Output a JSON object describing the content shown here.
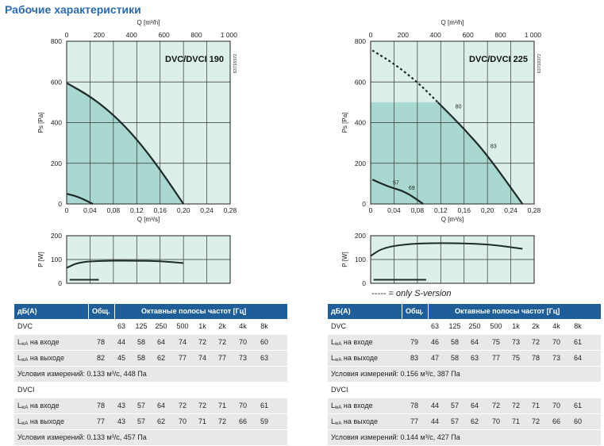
{
  "page_title": "Рабочие характеристики",
  "s_version_note": "----- = only S-version",
  "chart_data": [
    {
      "type": "line",
      "title": "DVC/DVCI 190",
      "code": "63718372",
      "xlabel": "Q [m³/s]",
      "x2label": "Q [m³/h]",
      "ylabel": "Ps [Pa]",
      "xlim": [
        0,
        0.28
      ],
      "ylim": [
        0,
        800
      ],
      "x_ticks": [
        "0",
        "0,04",
        "0,08",
        "0,12",
        "0,16",
        "0,20",
        "0,24",
        "0,28"
      ],
      "x2_ticks": [
        "0",
        "200",
        "400",
        "600",
        "800",
        "1 000"
      ],
      "y_ticks": [
        "0",
        "200",
        "400",
        "600",
        "800"
      ],
      "series": [
        {
          "style": "solid",
          "x": [
            0,
            0.04,
            0.08,
            0.12,
            0.16,
            0.2
          ],
          "y": [
            595,
            530,
            440,
            320,
            170,
            0
          ]
        },
        {
          "style": "solid",
          "x": [
            0,
            0.02,
            0.045
          ],
          "y": [
            50,
            35,
            0
          ]
        }
      ],
      "power": {
        "ylabel": "P [W]",
        "ylim": [
          0,
          200
        ],
        "y_ticks": [
          "0",
          "100",
          "200"
        ],
        "series": [
          {
            "x": [
              0,
              0.02,
              0.06,
              0.12,
              0.16,
              0.2
            ],
            "y": [
              65,
              88,
              95,
              95,
              93,
              85
            ]
          },
          {
            "x": [
              0.005,
              0.055
            ],
            "y": [
              15,
              15
            ]
          }
        ]
      }
    },
    {
      "type": "line",
      "title": "DVC/DVCI 225",
      "code": "63718372",
      "xlabel": "Q [m³/s]",
      "x2label": "Q [m³/h]",
      "ylabel": "Ps [Pa]",
      "xlim": [
        0,
        0.28
      ],
      "ylim": [
        0,
        800
      ],
      "x_ticks": [
        "0",
        "0,04",
        "0,08",
        "0,12",
        "0,16",
        "0,20",
        "0,24",
        "0,28"
      ],
      "x2_ticks": [
        "0",
        "200",
        "400",
        "600",
        "800",
        "1 000"
      ],
      "y_ticks": [
        "0",
        "200",
        "400",
        "600",
        "800"
      ],
      "series": [
        {
          "style": "dashed",
          "x": [
            0.003,
            0.04,
            0.08,
            0.115
          ],
          "y": [
            755,
            690,
            600,
            500
          ]
        },
        {
          "style": "solid",
          "x": [
            0.115,
            0.16,
            0.2,
            0.26
          ],
          "y": [
            500,
            370,
            240,
            0
          ]
        },
        {
          "style": "solid",
          "x": [
            0.003,
            0.03,
            0.06,
            0.09
          ],
          "y": [
            120,
            85,
            60,
            0
          ]
        }
      ],
      "annotations": [
        {
          "text": "80",
          "x": 0.145,
          "y": 470
        },
        {
          "text": "83",
          "x": 0.205,
          "y": 275
        },
        {
          "text": "57",
          "x": 0.038,
          "y": 95
        },
        {
          "text": "69",
          "x": 0.065,
          "y": 70
        }
      ],
      "power": {
        "ylabel": "P [W]",
        "ylim": [
          0,
          200
        ],
        "y_ticks": [
          "0",
          "100",
          "200"
        ],
        "series": [
          {
            "x": [
              0,
              0.02,
              0.06,
              0.12,
              0.2,
              0.26
            ],
            "y": [
              115,
              148,
              165,
              170,
              165,
              145
            ]
          },
          {
            "x": [
              0.005,
              0.095
            ],
            "y": [
              15,
              15
            ]
          }
        ]
      }
    }
  ],
  "tables": [
    {
      "header": {
        "col1": "дБ(A)",
        "col2": "Общ.",
        "col3": "Октавные полосы частот [Гц]"
      },
      "rows": [
        {
          "kind": "label",
          "label": "DVC",
          "total": "",
          "values": [
            "63",
            "125",
            "250",
            "500",
            "1k",
            "2k",
            "4k",
            "8k"
          ]
        },
        {
          "kind": "data",
          "lwa": "L",
          "sub": "wA",
          "label": " на входе",
          "total": "78",
          "values": [
            "44",
            "58",
            "64",
            "74",
            "72",
            "72",
            "70",
            "60"
          ]
        },
        {
          "kind": "data",
          "lwa": "L",
          "sub": "wA",
          "label": " на выходе",
          "total": "82",
          "values": [
            "45",
            "58",
            "62",
            "77",
            "74",
            "77",
            "73",
            "63"
          ]
        },
        {
          "kind": "cond",
          "label": "Условия измерений: 0.133 м³/с, 448 Па"
        },
        {
          "kind": "label",
          "label": "DVCI",
          "total": "",
          "values": []
        },
        {
          "kind": "data",
          "lwa": "L",
          "sub": "wA",
          "label": " на входе",
          "total": "78",
          "values": [
            "43",
            "57",
            "64",
            "72",
            "72",
            "71",
            "70",
            "61"
          ]
        },
        {
          "kind": "data",
          "lwa": "L",
          "sub": "wA",
          "label": " на выходе",
          "total": "77",
          "values": [
            "43",
            "57",
            "62",
            "70",
            "71",
            "72",
            "66",
            "59"
          ]
        },
        {
          "kind": "cond",
          "label": "Условия измерений: 0.133 м³/с, 457 Па"
        }
      ]
    },
    {
      "header": {
        "col1": "дБ(A)",
        "col2": "Общ.",
        "col3": "Октавные полосы частот [Гц]"
      },
      "rows": [
        {
          "kind": "label",
          "label": "DVC",
          "total": "",
          "values": [
            "63",
            "125",
            "250",
            "500",
            "1k",
            "2k",
            "4k",
            "8k"
          ]
        },
        {
          "kind": "data",
          "lwa": "L",
          "sub": "wA",
          "label": " на входе",
          "total": "79",
          "values": [
            "46",
            "58",
            "64",
            "75",
            "73",
            "72",
            "70",
            "61"
          ]
        },
        {
          "kind": "data",
          "lwa": "L",
          "sub": "wA",
          "label": " на выходе",
          "total": "83",
          "values": [
            "47",
            "58",
            "63",
            "77",
            "75",
            "78",
            "73",
            "64"
          ]
        },
        {
          "kind": "cond",
          "label": "Условия измерений: 0.156 м³/с, 387 Па"
        },
        {
          "kind": "label",
          "label": "DVCI",
          "total": "",
          "values": []
        },
        {
          "kind": "data",
          "lwa": "L",
          "sub": "wA",
          "label": " на входе",
          "total": "78",
          "values": [
            "44",
            "57",
            "64",
            "72",
            "72",
            "71",
            "70",
            "61"
          ]
        },
        {
          "kind": "data",
          "lwa": "L",
          "sub": "wA",
          "label": " на выходе",
          "total": "77",
          "values": [
            "44",
            "57",
            "62",
            "70",
            "71",
            "72",
            "66",
            "60"
          ]
        },
        {
          "kind": "cond",
          "label": "Условия измерений: 0.144 м³/с, 427 Па"
        }
      ]
    }
  ],
  "colors": {
    "header_bg": "#1f5e98",
    "chart_bg": "#dcefe9",
    "chart_fill": "#a8d8cf",
    "curve": "#1f2a2a",
    "grid": "#222"
  }
}
